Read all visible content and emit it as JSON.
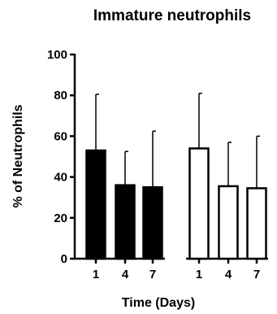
{
  "chart_data": {
    "type": "bar",
    "title": "Immature neutrophils",
    "xlabel": "Time (Days)",
    "ylabel": "% of Neutrophils",
    "ylim": [
      0,
      100
    ],
    "yticks": [
      0,
      20,
      40,
      60,
      80,
      100
    ],
    "categories": [
      "1",
      "4",
      "7"
    ],
    "grid": false,
    "series": [
      {
        "values": [
          53,
          36,
          35
        ],
        "error_upper": [
          80.5,
          52.5,
          62.5
        ],
        "color": "#000000",
        "fill": "solid"
      },
      {
        "values": [
          54,
          35.5,
          34.5
        ],
        "error_upper": [
          81,
          57,
          60
        ],
        "color": "#ffffff",
        "fill": "open"
      }
    ]
  }
}
